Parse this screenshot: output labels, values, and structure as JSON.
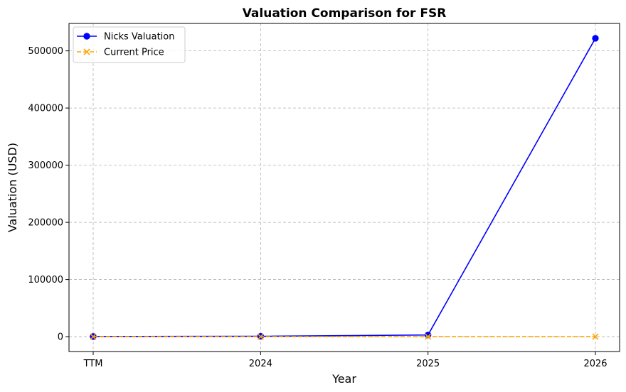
{
  "chart_data": {
    "type": "line",
    "title": "Valuation Comparison for FSR",
    "xlabel": "Year",
    "ylabel": "Valuation (USD)",
    "categories": [
      "TTM",
      "2024",
      "2025",
      "2026"
    ],
    "yticks": [
      "0",
      "100000",
      "200000",
      "300000",
      "400000",
      "500000"
    ],
    "ylim": [
      -26000,
      548000
    ],
    "grid": true,
    "legend_position": "top-left",
    "series": [
      {
        "name": "Nicks Valuation",
        "values": [
          250,
          600,
          3000,
          522000
        ],
        "color": "#0000ff",
        "marker": "circle",
        "linestyle": "solid"
      },
      {
        "name": "Current Price",
        "values": [
          0.1,
          0.1,
          0.1,
          0.1
        ],
        "color": "#ffa500",
        "marker": "x",
        "linestyle": "dashed"
      }
    ]
  }
}
